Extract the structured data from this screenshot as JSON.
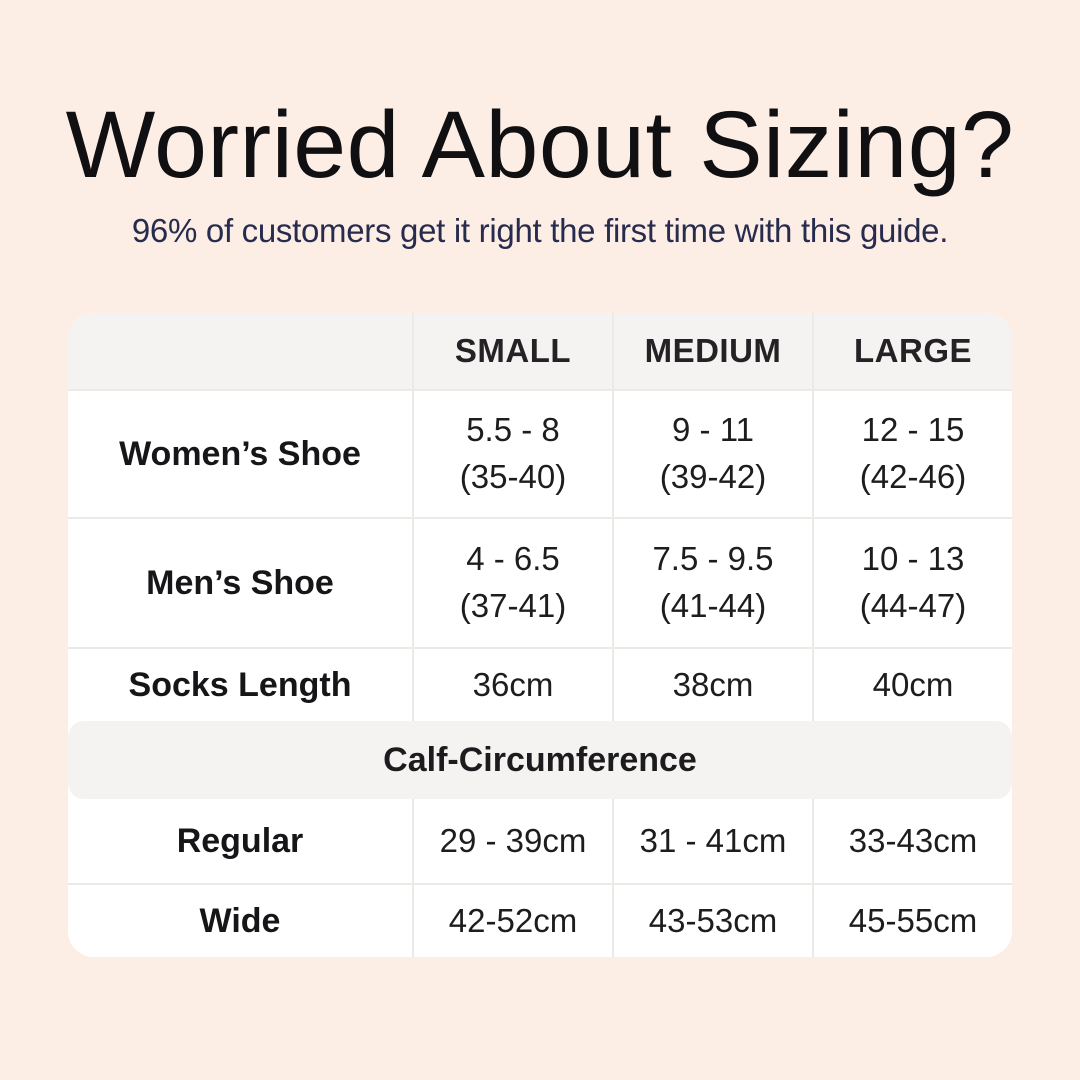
{
  "page": {
    "title": "Worried About Sizing?",
    "subtitle": "96% of customers get it right the first time with this guide."
  },
  "colors": {
    "page_background": "#fdeee5",
    "title_text": "#101012",
    "subtitle_text": "#272b4d",
    "table_background": "#ffffff",
    "header_band_background": "#f4f3f1",
    "divider": "#eceae7"
  },
  "table": {
    "column_headers": [
      "",
      "SMALL",
      "MEDIUM",
      "LARGE"
    ],
    "rows": [
      {
        "label": "Women’s Shoe",
        "values": [
          "5.5 - 8\n(35-40)",
          "9 - 11\n(39-42)",
          "12 - 15\n(42-46)"
        ]
      },
      {
        "label": "Men’s Shoe",
        "values": [
          "4 - 6.5\n(37-41)",
          "7.5 - 9.5\n(41-44)",
          "10 - 13\n(44-47)"
        ]
      },
      {
        "label": "Socks Length",
        "values": [
          "36cm",
          "38cm",
          "40cm"
        ]
      }
    ],
    "section_header": "Calf-Circumference",
    "section_rows": [
      {
        "label": "Regular",
        "values": [
          "29 - 39cm",
          "31 - 41cm",
          "33-43cm"
        ]
      },
      {
        "label": "Wide",
        "values": [
          "42-52cm",
          "43-53cm",
          "45-55cm"
        ]
      }
    ]
  },
  "chart_data": {
    "type": "table",
    "title": "Worried About Sizing?",
    "subtitle": "96% of customers get it right the first time with this guide.",
    "columns": [
      "",
      "SMALL",
      "MEDIUM",
      "LARGE"
    ],
    "rows": [
      [
        "Women’s Shoe",
        "5.5 - 8 (35-40)",
        "9 - 11 (39-42)",
        "12 - 15 (42-46)"
      ],
      [
        "Men’s Shoe",
        "4 - 6.5 (37-41)",
        "7.5 - 9.5 (41-44)",
        "10 - 13 (44-47)"
      ],
      [
        "Socks Length",
        "36cm",
        "38cm",
        "40cm"
      ],
      [
        "Calf-Circumference",
        "",
        "",
        ""
      ],
      [
        "Regular",
        "29 - 39cm",
        "31 - 41cm",
        "33-43cm"
      ],
      [
        "Wide",
        "42-52cm",
        "43-53cm",
        "45-55cm"
      ]
    ]
  }
}
